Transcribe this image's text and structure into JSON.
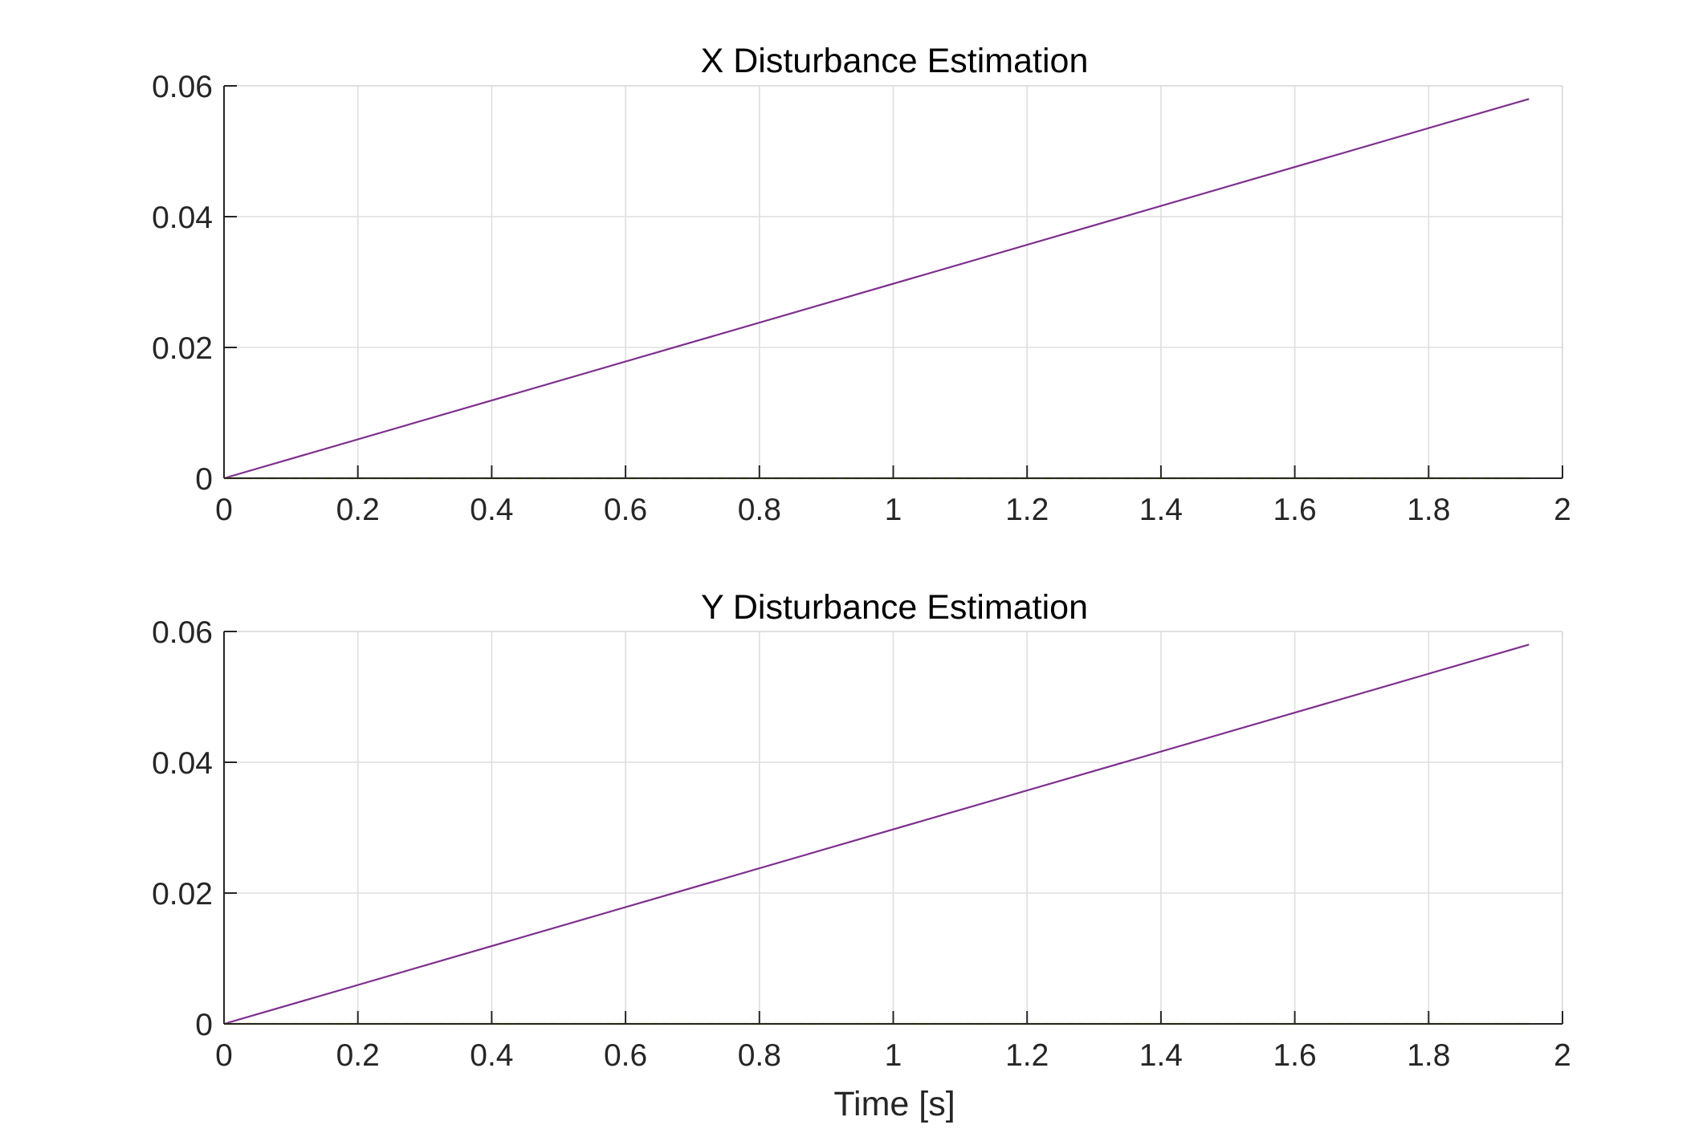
{
  "figure": {
    "background": "#ffffff"
  },
  "chart_data": [
    {
      "type": "line",
      "title": "X Disturbance Estimation",
      "xlabel": "",
      "ylabel": "",
      "xlim": [
        0,
        2
      ],
      "ylim": [
        0,
        0.06
      ],
      "xticks": [
        0,
        0.2,
        0.4,
        0.6,
        0.8,
        1,
        1.2,
        1.4,
        1.6,
        1.8,
        2
      ],
      "xtick_labels": [
        "0",
        "0.2",
        "0.4",
        "0.6",
        "0.8",
        "1",
        "1.2",
        "1.4",
        "1.6",
        "1.8",
        "2"
      ],
      "yticks": [
        0,
        0.02,
        0.04,
        0.06
      ],
      "ytick_labels": [
        "0",
        "0.02",
        "0.04",
        "0.06"
      ],
      "grid": true,
      "series": [
        {
          "x": [
            0,
            1.95
          ],
          "y": [
            0,
            0.058
          ],
          "color": "#7e2f8e",
          "style": "solid"
        },
        {
          "x": [
            0,
            1.95
          ],
          "y": [
            0,
            0
          ],
          "color": "#77ac30",
          "style": "solid"
        },
        {
          "x": [
            0,
            1.95
          ],
          "y": [
            0,
            0
          ],
          "color": "#edb120",
          "style": "dashed"
        }
      ]
    },
    {
      "type": "line",
      "title": "Y Disturbance Estimation",
      "xlabel": "Time [s]",
      "ylabel": "",
      "xlim": [
        0,
        2
      ],
      "ylim": [
        0,
        0.06
      ],
      "xticks": [
        0,
        0.2,
        0.4,
        0.6,
        0.8,
        1,
        1.2,
        1.4,
        1.6,
        1.8,
        2
      ],
      "xtick_labels": [
        "0",
        "0.2",
        "0.4",
        "0.6",
        "0.8",
        "1",
        "1.2",
        "1.4",
        "1.6",
        "1.8",
        "2"
      ],
      "yticks": [
        0,
        0.02,
        0.04,
        0.06
      ],
      "ytick_labels": [
        "0",
        "0.02",
        "0.04",
        "0.06"
      ],
      "grid": true,
      "series": [
        {
          "x": [
            0,
            1.95
          ],
          "y": [
            0,
            0.058
          ],
          "color": "#7e2f8e",
          "style": "solid"
        },
        {
          "x": [
            0,
            1.95
          ],
          "y": [
            0,
            0
          ],
          "color": "#77ac30",
          "style": "solid"
        },
        {
          "x": [
            0,
            1.95
          ],
          "y": [
            0,
            0
          ],
          "color": "#edb120",
          "style": "dashed"
        }
      ]
    }
  ]
}
